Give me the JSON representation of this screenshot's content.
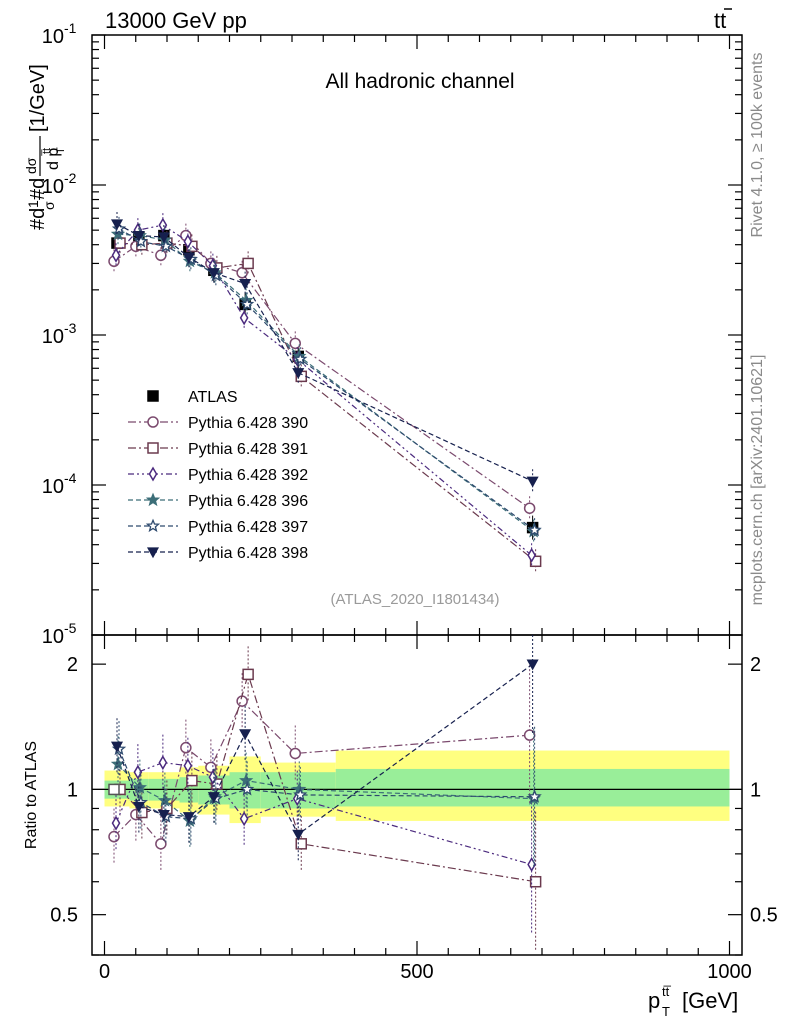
{
  "header": {
    "energy": "13000 GeV pp",
    "process": "t",
    "process_bar": "t"
  },
  "annotation": "All hadronic channel",
  "analysis_id": "(ATLAS_2020_I1801434)",
  "side_text": {
    "rivet": "Rivet 4.1.0, ≥ 100k events",
    "mcplots": "mcplots.cern.ch [arXiv:2401.10621]"
  },
  "axes": {
    "ylabel_main": "#d¹⁄σ#d dσⁿᴼ/d pₜ [1/GeV]",
    "ylabel_main_parts": {
      "lead": "#d",
      "frac_top": "1",
      "frac_bot": "σ",
      "mid": "#d",
      "d": "dσ",
      "sup": "ttbar",
      "unit": "[1/GeV]",
      "dp": "d p",
      "sub": "T",
      "supt": "t̅t"
    },
    "ylabel_ratio": "Ratio to ATLAS",
    "xlabel": "p",
    "xlabel_sub": "T",
    "xlabel_sup": "tt̅",
    "xlabel_unit": "[GeV]",
    "y_tick_labels": [
      "10⁻¹",
      "10⁻²",
      "10⁻³",
      "10⁻⁴",
      "10⁻⁵"
    ],
    "y_tick_mantissa": "10",
    "y_tick_exps": [
      "-1",
      "-2",
      "-3",
      "-4",
      "-5"
    ],
    "ratio_tick_labels": [
      "2",
      "1",
      "0.5"
    ],
    "x_tick_labels": [
      "0",
      "500",
      "1000"
    ]
  },
  "legend": [
    {
      "label": "ATLAS",
      "marker": "square-filled",
      "color": "#000000"
    },
    {
      "label": "Pythia 6.428 390",
      "marker": "circle-open",
      "color": "#7b4a6e"
    },
    {
      "label": "Pythia 6.428 391",
      "marker": "square-open",
      "color": "#6b3a4e"
    },
    {
      "label": "Pythia 6.428 392",
      "marker": "diamond-open",
      "color": "#4b2a7e"
    },
    {
      "label": "Pythia 6.428 396",
      "marker": "star-filled",
      "color": "#3c6e78"
    },
    {
      "label": "Pythia 6.428 397",
      "marker": "star-open",
      "color": "#2e4a6e"
    },
    {
      "label": "Pythia 6.428 398",
      "marker": "triangle-down-filled",
      "color": "#16204e"
    }
  ],
  "chart_data": [
    {
      "type": "scatter",
      "title": "All hadronic channel",
      "xlabel": "p_T^{ttbar} [GeV]",
      "ylabel": "1/sigma dsigma/dp_T [1/GeV]",
      "yscale": "log",
      "xlim": [
        -20,
        1020
      ],
      "ylim": [
        1e-05,
        0.1
      ],
      "x": [
        20,
        55,
        95,
        135,
        175,
        225,
        310,
        685
      ],
      "series": [
        {
          "name": "ATLAS",
          "values": [
            0.0041,
            0.0045,
            0.0046,
            0.0037,
            0.0027,
            0.0016,
            0.00072,
            5.2e-05
          ],
          "band": true
        },
        {
          "name": "Pythia 6.428 390",
          "values": [
            0.0031,
            0.0039,
            0.0034,
            0.0046,
            0.003,
            0.0026,
            0.00088,
            7e-05
          ]
        },
        {
          "name": "Pythia 6.428 391",
          "values": [
            0.0041,
            0.004,
            0.0041,
            0.0039,
            0.0028,
            0.003,
            0.00053,
            3.1e-05
          ]
        },
        {
          "name": "Pythia 6.428 392",
          "values": [
            0.0034,
            0.005,
            0.0054,
            0.0042,
            0.0029,
            0.0013,
            0.00069,
            3.4e-05
          ]
        },
        {
          "name": "Pythia 6.428 396",
          "values": [
            0.0047,
            0.0046,
            0.0043,
            0.0031,
            0.0026,
            0.0017,
            0.00072,
            4.9e-05
          ]
        },
        {
          "name": "Pythia 6.428 397",
          "values": [
            0.0051,
            0.0042,
            0.0039,
            0.0032,
            0.0025,
            0.0016,
            0.00069,
            5e-05
          ]
        },
        {
          "name": "Pythia 6.428 398",
          "values": [
            0.0055,
            0.0046,
            0.0045,
            0.0033,
            0.0026,
            0.0022,
            0.00056,
            0.000106
          ]
        }
      ]
    },
    {
      "type": "scatter",
      "title": "",
      "xlabel": "p_T^{ttbar} [GeV]",
      "ylabel": "Ratio to ATLAS",
      "yscale": "log",
      "xlim": [
        -20,
        1020
      ],
      "ylim": [
        0.4,
        2.35
      ],
      "x": [
        20,
        55,
        95,
        135,
        175,
        225,
        310,
        685
      ],
      "reference": 1.0,
      "bands": {
        "bin_edges": [
          0,
          40,
          70,
          120,
          150,
          200,
          250,
          370,
          1000
        ],
        "inner": [
          [
            0.95,
            1.05
          ],
          [
            0.94,
            1.06
          ],
          [
            0.94,
            1.06
          ],
          [
            0.93,
            1.07
          ],
          [
            0.92,
            1.08
          ],
          [
            0.9,
            1.1
          ],
          [
            0.9,
            1.1
          ],
          [
            0.91,
            1.12
          ]
        ],
        "outer": [
          [
            0.91,
            1.11
          ],
          [
            0.9,
            1.1
          ],
          [
            0.9,
            1.1
          ],
          [
            0.88,
            1.13
          ],
          [
            0.87,
            1.14
          ],
          [
            0.83,
            1.2
          ],
          [
            0.86,
            1.16
          ],
          [
            0.84,
            1.24
          ]
        ]
      },
      "series": [
        {
          "name": "Pythia 6.428 390",
          "values": [
            0.77,
            0.87,
            0.74,
            1.26,
            1.13,
            1.63,
            1.22,
            1.35
          ]
        },
        {
          "name": "Pythia 6.428 391",
          "values": [
            1.0,
            0.88,
            0.9,
            1.05,
            1.03,
            1.89,
            0.74,
            0.6
          ]
        },
        {
          "name": "Pythia 6.428 392",
          "values": [
            0.83,
            1.1,
            1.16,
            1.14,
            1.07,
            0.85,
            0.95,
            0.66
          ]
        },
        {
          "name": "Pythia 6.428 396",
          "values": [
            1.15,
            1.01,
            0.94,
            0.84,
            0.96,
            1.05,
            1.0,
            0.95
          ]
        },
        {
          "name": "Pythia 6.428 397",
          "values": [
            1.25,
            0.93,
            0.86,
            0.85,
            0.95,
            1.0,
            0.97,
            0.96
          ]
        },
        {
          "name": "Pythia 6.428 398",
          "values": [
            1.27,
            0.91,
            0.87,
            0.86,
            0.96,
            1.36,
            0.78,
            2.0
          ]
        }
      ]
    }
  ]
}
